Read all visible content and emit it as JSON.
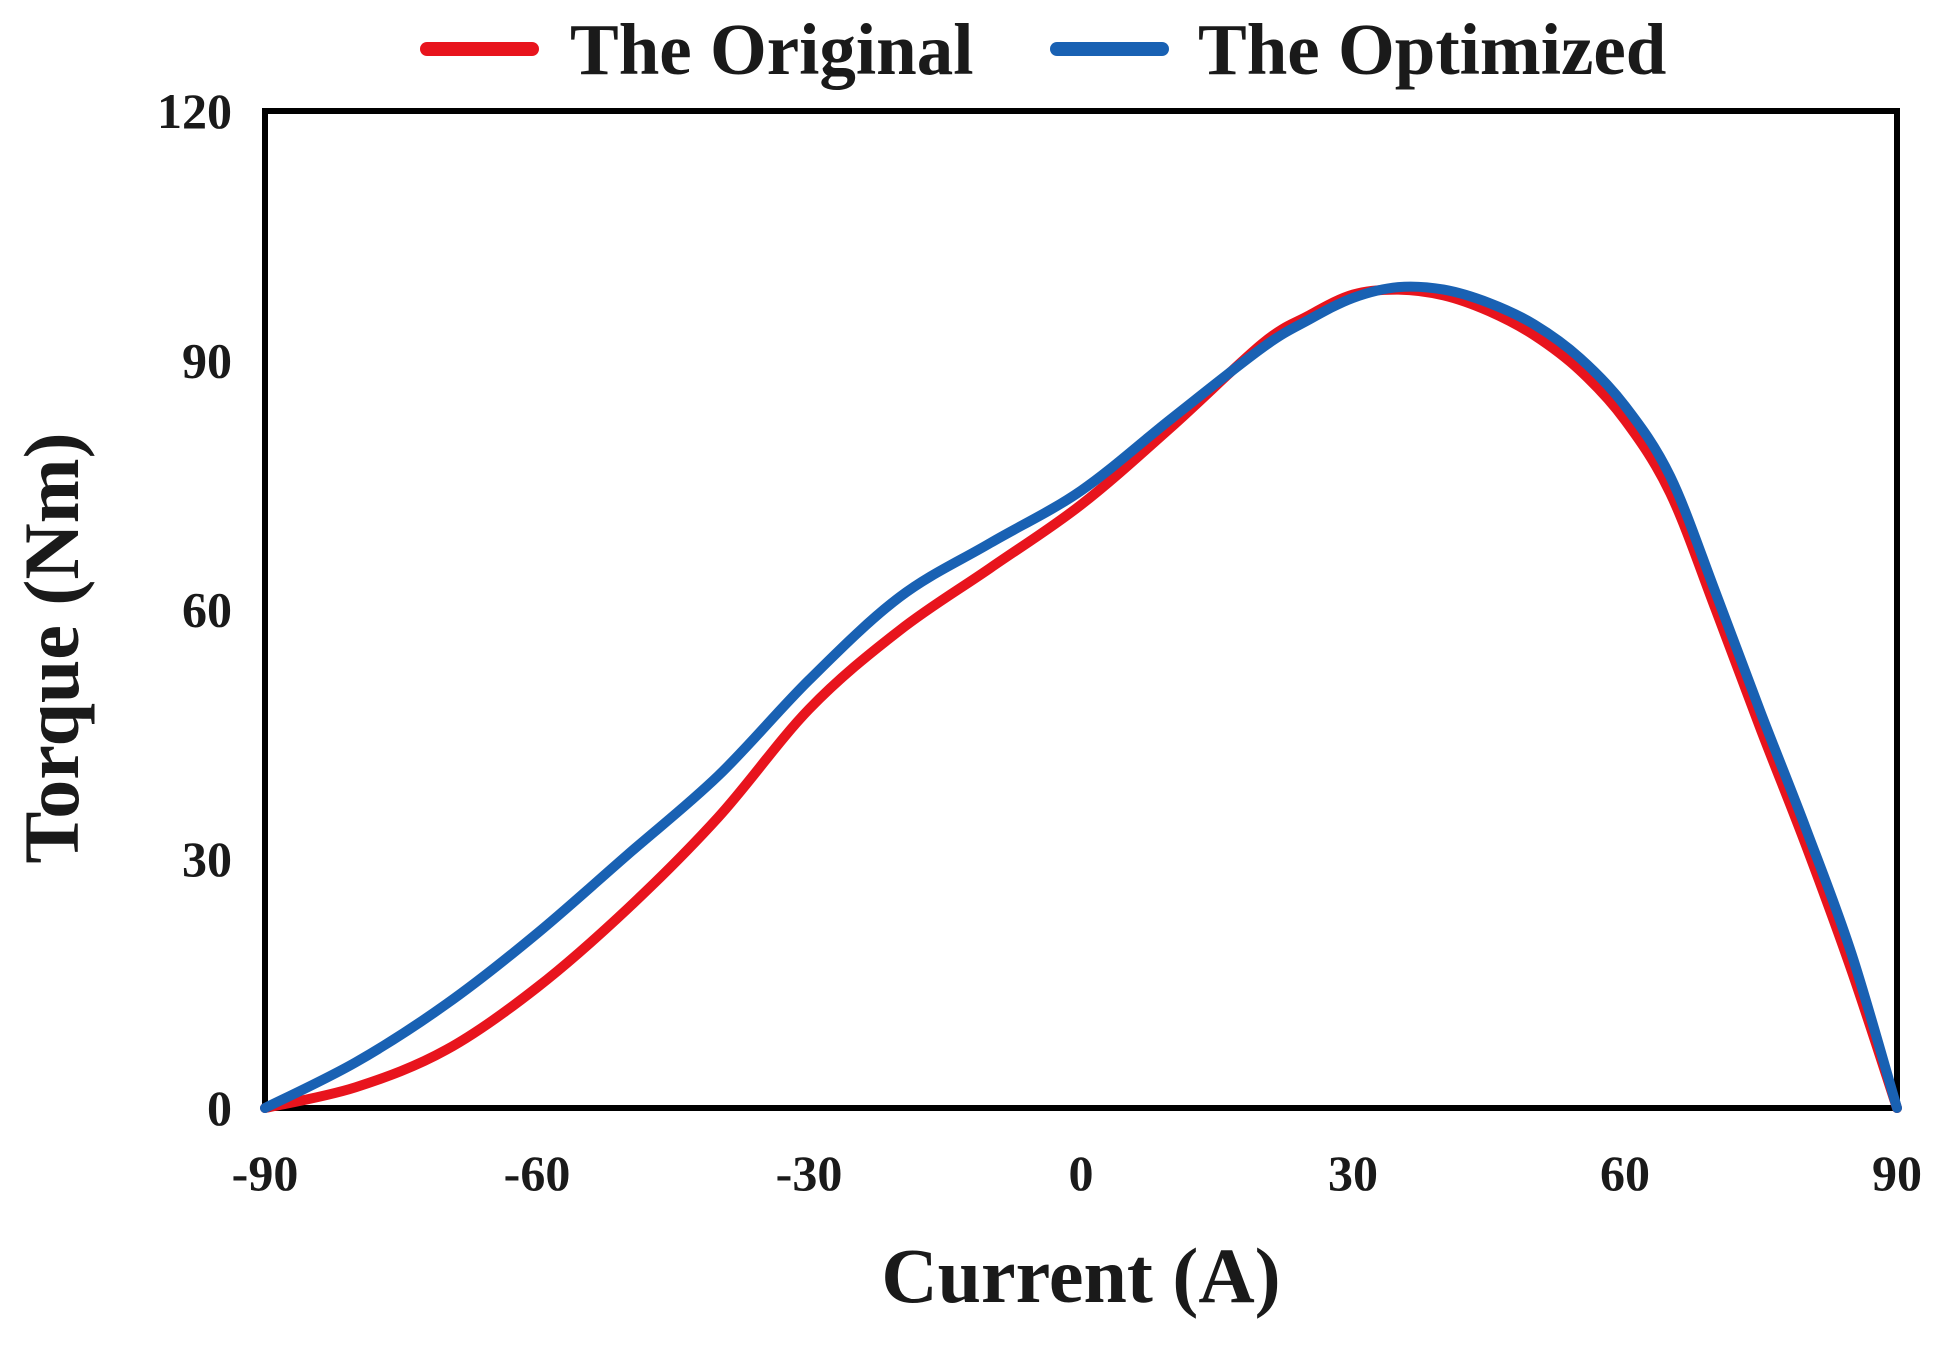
{
  "legend": {
    "items": [
      {
        "label": "The Original",
        "color": "#e8141d"
      },
      {
        "label": "The Optimized",
        "color": "#1961b3"
      }
    ]
  },
  "axes": {
    "x_title": "Current (A)",
    "y_title": "Torque (Nm)"
  },
  "chart_data": {
    "type": "line",
    "title": "",
    "xlabel": "Current (A)",
    "ylabel": "Torque (Nm)",
    "xlim": [
      -90,
      90
    ],
    "ylim": [
      0,
      120
    ],
    "x_tick_values": [
      -90,
      -60,
      -30,
      0,
      30,
      60,
      90
    ],
    "y_tick_values": [
      0,
      30,
      60,
      90,
      120
    ],
    "grid": false,
    "legend_position": "top-center",
    "frame": "full-box",
    "x": [
      -90,
      -80,
      -70,
      -60,
      -50,
      -40,
      -30,
      -20,
      -10,
      0,
      10,
      20,
      25,
      30,
      35,
      40,
      45,
      50,
      55,
      60,
      65,
      70,
      75,
      80,
      85,
      90
    ],
    "series": [
      {
        "name": "The Original",
        "color": "#e8141d",
        "values": [
          0,
          2.5,
          7,
          14.5,
          24,
          35,
          48,
          57.5,
          65,
          72.6,
          82,
          92,
          95.3,
          97.9,
          98.5,
          97.8,
          95.9,
          93,
          88.8,
          82.8,
          74,
          60,
          45.5,
          31.5,
          16.5,
          0
        ]
      },
      {
        "name": "The Optimized",
        "color": "#1961b3",
        "values": [
          0,
          5.5,
          12.5,
          21,
          30.5,
          40,
          51.5,
          61.5,
          68,
          74.3,
          83,
          91.5,
          94.8,
          97.5,
          98.8,
          98.5,
          96.9,
          94.3,
          90.3,
          84.5,
          76,
          62,
          47.5,
          33.5,
          18.5,
          0
        ]
      }
    ]
  }
}
